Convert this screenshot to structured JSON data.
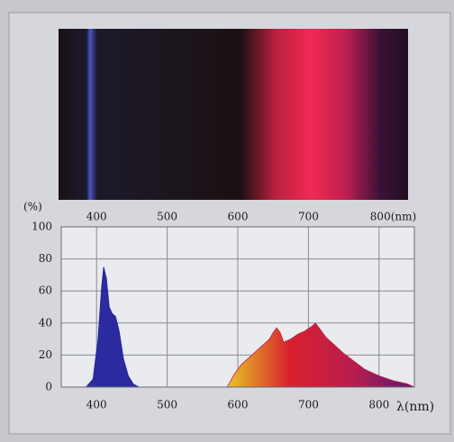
{
  "chart_data": {
    "type": "area",
    "ylabel": "(%)",
    "xlabel": "λ(nm)",
    "xlim": [
      350,
      850
    ],
    "ylim": [
      0,
      100
    ],
    "xticks": [
      400,
      500,
      600,
      700,
      800
    ],
    "top_xticks": [
      400,
      500,
      600,
      {
        "value": 800,
        "label": "800(nm)"
      }
    ],
    "top_xticks_extra": [
      700
    ],
    "yticks": [
      0,
      20,
      40,
      60,
      80,
      100
    ],
    "grid": true,
    "series": [
      {
        "color": "#2b2a9e",
        "x": [
          385,
          395,
          402,
          407,
          410,
          414,
          418,
          422,
          427,
          432,
          438,
          445,
          452,
          460
        ],
        "values": [
          0,
          5,
          30,
          62,
          75,
          68,
          50,
          46,
          44,
          35,
          18,
          7,
          2,
          0
        ]
      },
      {
        "color": "#c41f47",
        "gradient": [
          "#e6c426",
          "#d8202e",
          "#b81e4e",
          "#5a1a6e"
        ],
        "x": [
          585,
          595,
          605,
          615,
          625,
          635,
          645,
          650,
          655,
          660,
          665,
          675,
          685,
          695,
          705,
          710,
          715,
          725,
          735,
          750,
          765,
          780,
          800,
          820,
          840,
          850
        ],
        "values": [
          0,
          8,
          14,
          18,
          22,
          26,
          30,
          34,
          37,
          34,
          28,
          30,
          33,
          35,
          38,
          40,
          37,
          31,
          27,
          21,
          16,
          11,
          7,
          4,
          2,
          0
        ]
      }
    ]
  }
}
